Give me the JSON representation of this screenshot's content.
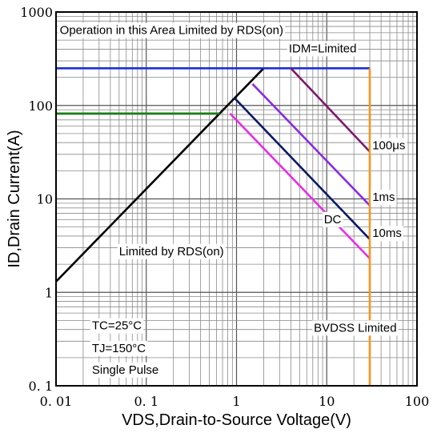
{
  "chart_data": {
    "type": "line",
    "xscale": "log",
    "yscale": "log",
    "xlim": [
      0.01,
      100
    ],
    "ylim": [
      0.1,
      1000
    ],
    "xlabel": "VDS,Drain-to-Source Voltage(V)",
    "ylabel": "ID,Drain Current(A)",
    "x_tick_labels": [
      {
        "value": 0.01,
        "label": "0. 01"
      },
      {
        "value": 0.1,
        "label": "0. 1"
      },
      {
        "value": 1,
        "label": "1"
      },
      {
        "value": 10,
        "label": "10"
      },
      {
        "value": 100,
        "label": "100"
      }
    ],
    "y_tick_labels": [
      {
        "value": 0.1,
        "label": "0. 1"
      },
      {
        "value": 1,
        "label": "1"
      },
      {
        "value": 10,
        "label": "10"
      },
      {
        "value": 100,
        "label": "100"
      },
      {
        "value": 1000,
        "label": "1000"
      }
    ],
    "grid": true,
    "series": [
      {
        "name": "Limited by RDS(on)",
        "color": "#000000",
        "x": [
          0.01,
          2.0
        ],
        "y": [
          1.3,
          250
        ]
      },
      {
        "name": "IDM=Limited",
        "color": "#1f2fd6",
        "x": [
          0.01,
          30
        ],
        "y": [
          250,
          250
        ]
      },
      {
        "name": "",
        "color": "#1a7f1a",
        "x": [
          0.01,
          0.65
        ],
        "y": [
          82,
          82
        ]
      },
      {
        "name": "100μs",
        "color": "#7d1a6e",
        "x": [
          4.0,
          30
        ],
        "y": [
          250,
          32
        ]
      },
      {
        "name": "1ms",
        "color": "#8a2be2",
        "x": [
          1.5,
          30
        ],
        "y": [
          170,
          8.5
        ]
      },
      {
        "name": "10ms",
        "color": "#0a1a66",
        "x": [
          0.95,
          30
        ],
        "y": [
          120,
          3.7
        ]
      },
      {
        "name": "DC",
        "color": "#e62ee6",
        "x": [
          0.85,
          30
        ],
        "y": [
          82,
          2.3
        ]
      },
      {
        "name": "BVDSS Limited",
        "color": "#f7941d",
        "x": [
          30,
          30
        ],
        "y": [
          0.1,
          250
        ]
      }
    ],
    "annotations": [
      {
        "text": "Operation in this Area Limited by RDS(on)",
        "x": 0.011,
        "y": 580
      },
      {
        "text": "IDM=Limited",
        "x": 3.8,
        "y": 370
      },
      {
        "text": "100μs",
        "x": 32,
        "y": 34
      },
      {
        "text": "1ms",
        "x": 32,
        "y": 9.5
      },
      {
        "text": "10ms",
        "x": 32,
        "y": 3.9
      },
      {
        "text": "DC",
        "x": 9.3,
        "y": 5.5
      },
      {
        "text": "Limited by RDS(on)",
        "x": 0.05,
        "y": 2.5
      },
      {
        "text": "BVDSS Limited",
        "x": 7.2,
        "y": 0.38
      },
      {
        "text": "TC=25°C",
        "x": 0.025,
        "y": 0.4
      },
      {
        "text": "TJ=150°C",
        "x": 0.025,
        "y": 0.23
      },
      {
        "text": "Single Pulse",
        "x": 0.025,
        "y": 0.135
      }
    ]
  }
}
